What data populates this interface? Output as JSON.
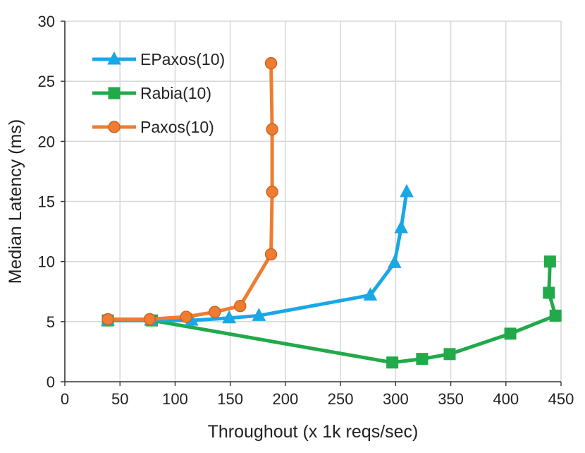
{
  "chart_data": {
    "type": "line",
    "title": "",
    "xlabel": "Throughout (x 1k reqs/sec)",
    "ylabel": "Median Latency (ms)",
    "xlim": [
      0,
      450
    ],
    "ylim": [
      0,
      30
    ],
    "xticks": [
      0,
      50,
      100,
      150,
      200,
      250,
      300,
      350,
      400,
      450
    ],
    "yticks": [
      0,
      5,
      10,
      15,
      20,
      25,
      30
    ],
    "grid": true,
    "legend_position": "top-left",
    "series": [
      {
        "name": "EPaxos(10)",
        "color": "#1aa7e6",
        "marker": "triangle",
        "points": [
          [
            39,
            5.1
          ],
          [
            78,
            5.1
          ],
          [
            115,
            5.1
          ],
          [
            149,
            5.3
          ],
          [
            176,
            5.5
          ],
          [
            277,
            7.2
          ],
          [
            299,
            9.9
          ],
          [
            305,
            12.8
          ],
          [
            310,
            15.8
          ]
        ]
      },
      {
        "name": "Rabia(10)",
        "color": "#22a94a",
        "marker": "square",
        "points": [
          [
            39,
            5.1
          ],
          [
            79,
            5.1
          ],
          [
            297,
            1.6
          ],
          [
            324,
            1.9
          ],
          [
            349,
            2.3
          ],
          [
            404,
            4.0
          ],
          [
            445,
            5.5
          ],
          [
            439,
            7.4
          ],
          [
            440,
            10.0
          ]
        ]
      },
      {
        "name": "Paxos(10)",
        "color": "#ee7d31",
        "marker": "circle",
        "points": [
          [
            39,
            5.2
          ],
          [
            77,
            5.2
          ],
          [
            110,
            5.4
          ],
          [
            136,
            5.8
          ],
          [
            159,
            6.3
          ],
          [
            187,
            10.6
          ],
          [
            188,
            15.8
          ],
          [
            188,
            21.0
          ],
          [
            187,
            26.5
          ]
        ]
      }
    ]
  }
}
